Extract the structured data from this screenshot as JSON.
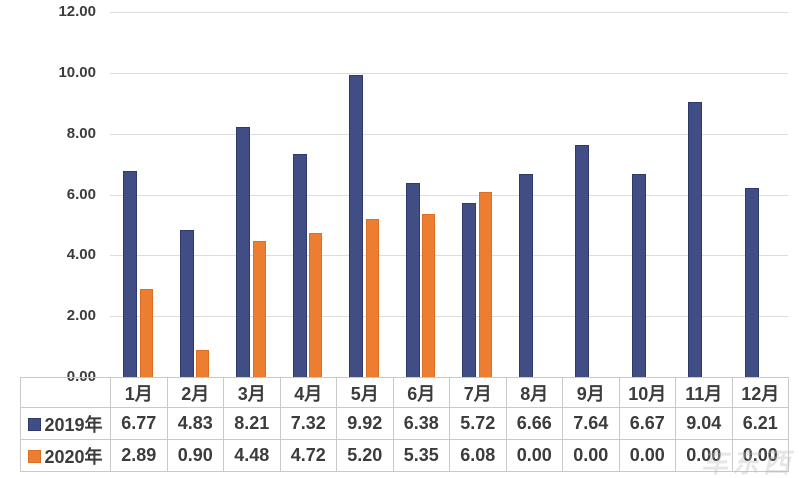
{
  "chart_data": {
    "type": "bar",
    "title": "",
    "xlabel": "",
    "ylabel": "",
    "categories": [
      "1月",
      "2月",
      "3月",
      "4月",
      "5月",
      "6月",
      "7月",
      "8月",
      "9月",
      "10月",
      "11月",
      "12月"
    ],
    "series": [
      {
        "name": "2019年",
        "color": "#414e85",
        "border_color": "#2e3a6b",
        "values": [
          6.77,
          4.83,
          8.21,
          7.32,
          9.92,
          6.38,
          5.72,
          6.66,
          7.64,
          6.67,
          9.04,
          6.21
        ]
      },
      {
        "name": "2020年",
        "color": "#ed7d31",
        "border_color": "#dd6f24",
        "values": [
          2.89,
          0.9,
          4.48,
          4.72,
          5.2,
          5.35,
          6.08,
          0.0,
          0.0,
          0.0,
          0.0,
          0.0
        ]
      }
    ],
    "ylim": [
      0,
      12
    ],
    "ytick_step": 2,
    "ytick_labels": [
      "0.00",
      "2.00",
      "4.00",
      "6.00",
      "8.00",
      "10.00",
      "12.00"
    ],
    "grid": true,
    "gridline_color": "#dcdcdc",
    "legend_position": "data-table-left",
    "data_table": true,
    "value_decimals": 2
  },
  "watermark": "车东西"
}
